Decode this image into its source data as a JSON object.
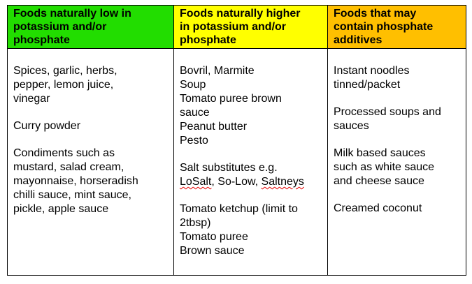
{
  "columns": [
    {
      "header_lines": [
        "Foods naturally low in",
        "potassium and/or",
        "phosphate"
      ],
      "header_color": "#22dd00",
      "groups": [
        {
          "lines": [
            "Spices, garlic, herbs,",
            "pepper, lemon juice,",
            "vinegar"
          ]
        },
        {
          "lines": [
            "Curry powder"
          ]
        },
        {
          "lines": [
            "Condiments such as",
            "mustard, salad cream,",
            "mayonnaise, horseradish",
            "chilli sauce, mint sauce,",
            "pickle, apple sauce"
          ]
        }
      ]
    },
    {
      "header_lines": [
        "Foods naturally higher",
        "in potassium and/or",
        "phosphate"
      ],
      "header_color": "#ffff00",
      "groups": [
        {
          "lines": [
            "Bovril, Marmite",
            "Soup",
            "Tomato puree brown",
            "sauce",
            "Peanut butter",
            "Pesto"
          ]
        },
        {
          "lines": [
            "Salt substitutes e.g."
          ],
          "spell_line": {
            "brand1": "LoSalt",
            "sep1": ", So-Low, ",
            "brand2": "Saltneys"
          }
        },
        {
          "lines": [
            "Tomato ketchup (limit to",
            "2tbsp)",
            "Tomato puree",
            "Brown sauce"
          ]
        }
      ]
    },
    {
      "header_lines": [
        "Foods that may",
        "contain phosphate",
        "additives"
      ],
      "header_color": "#ffbf00",
      "groups": [
        {
          "lines": [
            "Instant noodles",
            "tinned/packet"
          ]
        },
        {
          "lines": [
            "Processed soups and",
            "sauces"
          ]
        },
        {
          "lines": [
            "Milk based sauces",
            "such as white sauce",
            "and cheese sauce"
          ]
        },
        {
          "lines": [
            "Creamed coconut"
          ]
        }
      ]
    }
  ]
}
